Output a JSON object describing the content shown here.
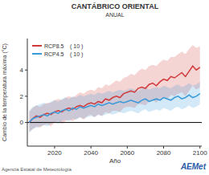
{
  "chart_data": {
    "type": "line",
    "title": "CANTÁBRICO ORIENTAL",
    "subtitle": "ANUAL",
    "x_label": "Año",
    "y_label": "Cambio de la temperatura máxima (°C)",
    "footer": "Agencia Estatal de Meteorología",
    "logo": "AEMet",
    "x": [
      2006,
      2008,
      2010,
      2012,
      2014,
      2016,
      2018,
      2020,
      2022,
      2024,
      2026,
      2028,
      2030,
      2032,
      2034,
      2036,
      2038,
      2040,
      2042,
      2044,
      2046,
      2048,
      2050,
      2052,
      2054,
      2056,
      2058,
      2060,
      2062,
      2064,
      2066,
      2068,
      2070,
      2072,
      2074,
      2076,
      2078,
      2080,
      2082,
      2084,
      2086,
      2088,
      2090,
      2092,
      2094,
      2096,
      2098,
      2100
    ],
    "series": [
      {
        "name": "RCP8.5",
        "n": 10,
        "color": "#d03a3a",
        "values": [
          0.0,
          0.3,
          0.5,
          0.4,
          0.6,
          0.7,
          0.6,
          0.8,
          0.9,
          0.8,
          1.0,
          1.1,
          1.0,
          1.2,
          1.3,
          1.2,
          1.4,
          1.5,
          1.4,
          1.6,
          1.5,
          1.8,
          1.7,
          1.9,
          2.0,
          1.9,
          2.2,
          2.3,
          2.4,
          2.3,
          2.6,
          2.7,
          2.6,
          2.9,
          3.0,
          2.8,
          3.1,
          3.3,
          3.2,
          3.5,
          3.4,
          3.6,
          3.8,
          3.5,
          3.9,
          4.3,
          4.0,
          4.2
        ],
        "low": [
          -0.7,
          -0.5,
          -0.3,
          -0.4,
          -0.2,
          -0.1,
          -0.3,
          0.0,
          0.1,
          -0.1,
          0.1,
          0.2,
          0.1,
          0.3,
          0.4,
          0.2,
          0.5,
          0.6,
          0.4,
          0.6,
          0.5,
          0.8,
          0.7,
          0.9,
          0.9,
          0.8,
          1.1,
          1.2,
          1.2,
          1.1,
          1.4,
          1.4,
          1.3,
          1.6,
          1.7,
          1.5,
          1.8,
          1.9,
          1.8,
          2.1,
          2.0,
          2.2,
          2.3,
          2.0,
          2.4,
          2.8,
          2.5,
          2.7
        ],
        "high": [
          0.8,
          1.1,
          1.3,
          1.2,
          1.4,
          1.5,
          1.5,
          1.7,
          1.8,
          1.7,
          1.9,
          2.0,
          1.9,
          2.1,
          2.3,
          2.2,
          2.4,
          2.5,
          2.4,
          2.7,
          2.6,
          2.9,
          2.8,
          3.0,
          3.2,
          3.1,
          3.4,
          3.5,
          3.7,
          3.6,
          3.9,
          4.1,
          4.0,
          4.3,
          4.4,
          4.3,
          4.6,
          4.8,
          4.7,
          5.0,
          5.0,
          5.2,
          5.4,
          5.2,
          5.6,
          5.9,
          5.7,
          5.8
        ]
      },
      {
        "name": "RCP4.5",
        "n": 10,
        "color": "#3a9ad9",
        "values": [
          0.0,
          0.3,
          0.4,
          0.5,
          0.6,
          0.5,
          0.7,
          0.8,
          0.7,
          0.9,
          1.0,
          0.9,
          1.1,
          1.0,
          1.2,
          1.1,
          1.2,
          1.3,
          1.2,
          1.4,
          1.3,
          1.4,
          1.5,
          1.4,
          1.5,
          1.6,
          1.5,
          1.6,
          1.7,
          1.6,
          1.5,
          1.7,
          1.8,
          1.6,
          1.7,
          1.8,
          1.7,
          1.9,
          1.8,
          1.7,
          1.9,
          2.0,
          1.8,
          1.9,
          2.1,
          1.9,
          2.0,
          2.2
        ],
        "low": [
          -0.8,
          -0.5,
          -0.4,
          -0.3,
          -0.2,
          -0.3,
          -0.1,
          0.0,
          -0.1,
          0.1,
          0.2,
          0.1,
          0.3,
          0.2,
          0.4,
          0.3,
          0.4,
          0.5,
          0.4,
          0.6,
          0.5,
          0.6,
          0.7,
          0.6,
          0.7,
          0.8,
          0.7,
          0.8,
          0.9,
          0.8,
          0.7,
          0.9,
          1.0,
          0.8,
          0.9,
          1.0,
          0.9,
          1.1,
          1.0,
          0.9,
          1.1,
          1.2,
          1.0,
          1.1,
          1.3,
          1.1,
          1.2,
          1.4
        ],
        "high": [
          0.9,
          1.2,
          1.3,
          1.4,
          1.5,
          1.4,
          1.6,
          1.7,
          1.6,
          1.8,
          1.9,
          1.8,
          2.0,
          1.9,
          2.1,
          2.0,
          2.1,
          2.2,
          2.1,
          2.3,
          2.2,
          2.3,
          2.4,
          2.3,
          2.4,
          2.5,
          2.4,
          2.5,
          2.6,
          2.5,
          2.4,
          2.6,
          2.7,
          2.5,
          2.6,
          2.7,
          2.6,
          2.8,
          2.7,
          2.6,
          2.8,
          2.9,
          2.7,
          2.8,
          3.0,
          2.8,
          2.9,
          3.1
        ]
      }
    ],
    "xlim": [
      2005,
      2101
    ],
    "xticks": [
      2020,
      2040,
      2060,
      2080,
      2100
    ],
    "ylim": [
      -1.8,
      6.4
    ],
    "yticks": [
      0,
      2,
      4
    ],
    "hline": 0,
    "grid": false,
    "legend": "upper left"
  }
}
